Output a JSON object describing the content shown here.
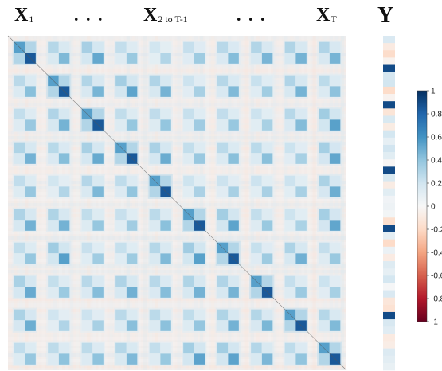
{
  "headers": {
    "x1": {
      "main": "X",
      "sub": "1"
    },
    "dots_left": ". . .",
    "x_mid": {
      "main": "X",
      "sub": "2 to T-1"
    },
    "dots_right": ". . .",
    "xt": {
      "main": "X",
      "sub": "T"
    },
    "y": "Y"
  },
  "chart_data": {
    "type": "heatmap",
    "title": "",
    "description_of_structure": "",
    "block_grid": {
      "rows": 10,
      "cols": 10
    },
    "block_pattern": {
      "diagonal_blocks_max": 1.0,
      "off_diagonal_blocks_typical": 0.5,
      "background_typical": 0.05
    },
    "y_column": {
      "strong_rows": [
        4,
        9,
        18,
        26,
        38
      ]
    },
    "colorbar": {
      "min": -1,
      "max": 1,
      "ticks": [
        "1",
        "0.8",
        "0.6",
        "0.4",
        "0.2",
        "0",
        "-0.2",
        "-0.4",
        "-0.6",
        "-0.8",
        "-1"
      ],
      "colors": [
        "#67001f",
        "#b2182b",
        "#d6604d",
        "#f4a582",
        "#fddbc7",
        "#f7f7f7",
        "#d1e5f0",
        "#92c5de",
        "#4393c3",
        "#2166ac",
        "#053061"
      ]
    }
  }
}
